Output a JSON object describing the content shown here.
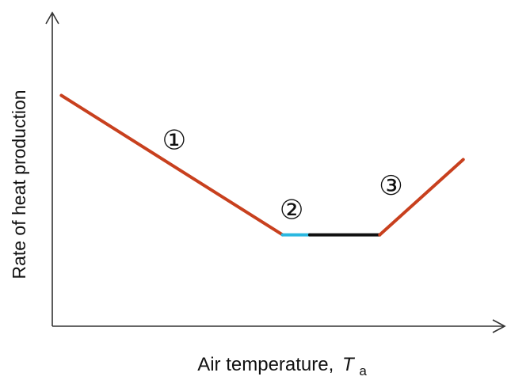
{
  "chart_data": {
    "type": "line",
    "xlabel": "Air temperature,",
    "xlabel_symbol": "T",
    "xlabel_subscript": "a",
    "ylabel": "Rate of heat production",
    "axis_ticks": false,
    "grid": false,
    "legend": "none",
    "xlim": [
      0,
      10
    ],
    "ylim": [
      0,
      10
    ],
    "segments": [
      {
        "label": "①",
        "color": "#c8401e",
        "points": [
          [
            0.2,
            7.63
          ],
          [
            5.1,
            3.02
          ]
        ]
      },
      {
        "label": "",
        "color": "#2ab8e0",
        "points": [
          [
            5.1,
            3.02
          ],
          [
            5.7,
            3.02
          ]
        ]
      },
      {
        "label": "",
        "color": "#111111",
        "points": [
          [
            5.7,
            3.02
          ],
          [
            7.25,
            3.02
          ]
        ]
      },
      {
        "label": "③",
        "color": "#c8401e",
        "points": [
          [
            7.25,
            3.02
          ],
          [
            9.1,
            5.51
          ]
        ]
      }
    ],
    "region_labels": [
      {
        "text": "①",
        "x": 2.7,
        "y": 6.1
      },
      {
        "text": "②",
        "x": 5.3,
        "y": 3.8
      },
      {
        "text": "③",
        "x": 7.5,
        "y": 4.6
      }
    ]
  }
}
